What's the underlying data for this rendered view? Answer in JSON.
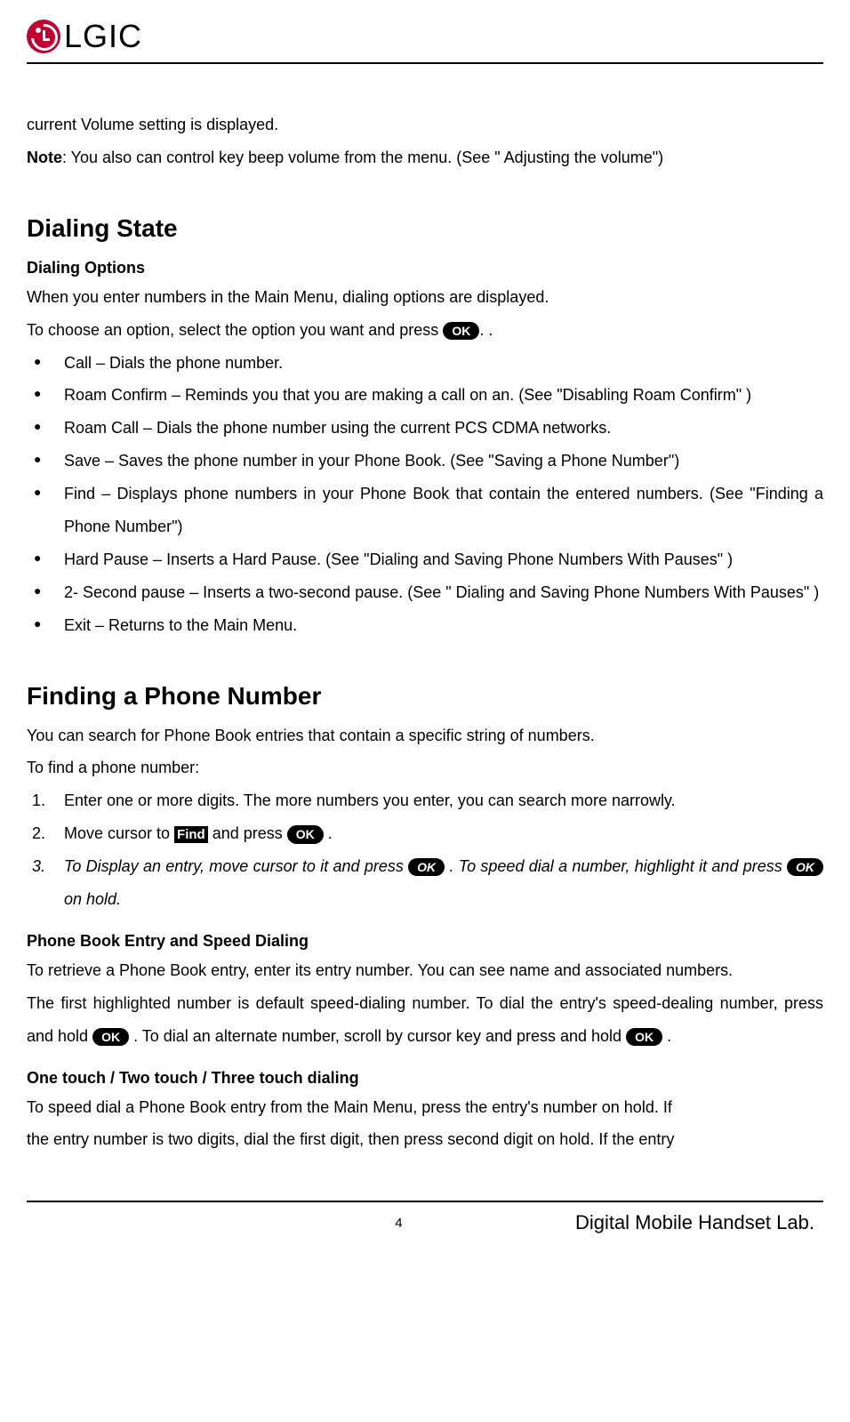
{
  "brand": "LGIC",
  "intro": {
    "line1": "current Volume setting is displayed.",
    "note_label": "Note",
    "note_text": ": You also can control key beep volume from the menu. (See \" Adjusting the volume\")"
  },
  "section1": {
    "heading": "Dialing State",
    "subheading": "Dialing Options",
    "p1": "When you enter numbers in the Main Menu, dialing options are displayed.",
    "p2_pre": "To choose an option, select the option you want and press ",
    "p2_post": ". .",
    "bullets": [
      "Call – Dials the phone number.",
      "Roam Confirm – Reminds you that you are making a call on an. (See \"Disabling Roam Confirm\" )",
      "Roam Call – Dials the phone number using the current PCS CDMA networks.",
      "Save – Saves the phone number in your Phone Book. (See \"Saving a Phone Number\")",
      "Find – Displays phone numbers in your Phone Book that contain the entered numbers. (See \"Finding a Phone Number\")",
      "Hard Pause – Inserts a Hard Pause. (See \"Dialing and Saving Phone Numbers With Pauses\" )",
      "2- Second pause – Inserts a two-second pause. (See \" Dialing and Saving Phone Numbers With Pauses\" )",
      "Exit – Returns to the Main Menu."
    ]
  },
  "section2": {
    "heading": "Finding a Phone Number",
    "p1": "You can search for Phone Book entries that contain a specific string of numbers.",
    "p2": "To find a phone number:",
    "step1": "Enter one or more digits. The more numbers you enter, you can search more narrowly.",
    "step2_pre": "Move cursor to ",
    "step2_mid": " and press ",
    "step2_post": " .",
    "step3_pre": "To Display an entry, move cursor to it and press ",
    "step3_mid": " . To speed dial a number, highlight it and press ",
    "step3_post": " on hold."
  },
  "section3": {
    "subheading": "Phone Book Entry and Speed Dialing",
    "p1": "To retrieve a Phone Book entry, enter its entry number.   You can see name and associated numbers.",
    "p2_pre": "The first highlighted number is default speed-dialing number. To dial the entry's speed-dealing number, press and hold ",
    "p2_mid": " . To dial an alternate number, scroll by cursor key and press and hold ",
    "p2_post": " ."
  },
  "section4": {
    "subheading": "One touch / Two touch / Three touch dialing",
    "p1": "To speed dial a Phone Book entry from the Main Menu, press the entry's number on hold. If",
    "p2": "the entry number is two digits, dial the first digit, then press second digit on hold. If the entry"
  },
  "buttons": {
    "ok": "OK",
    "find": "Find"
  },
  "footer": {
    "page_number": "4",
    "lab": "Digital Mobile Handset Lab."
  },
  "colors": {
    "logo": "#c20030",
    "text": "#000000",
    "background": "#ffffff"
  },
  "typography": {
    "body_fontsize": 18,
    "h2_fontsize": 28,
    "line_height": 2.05,
    "font_family": "Arial"
  }
}
